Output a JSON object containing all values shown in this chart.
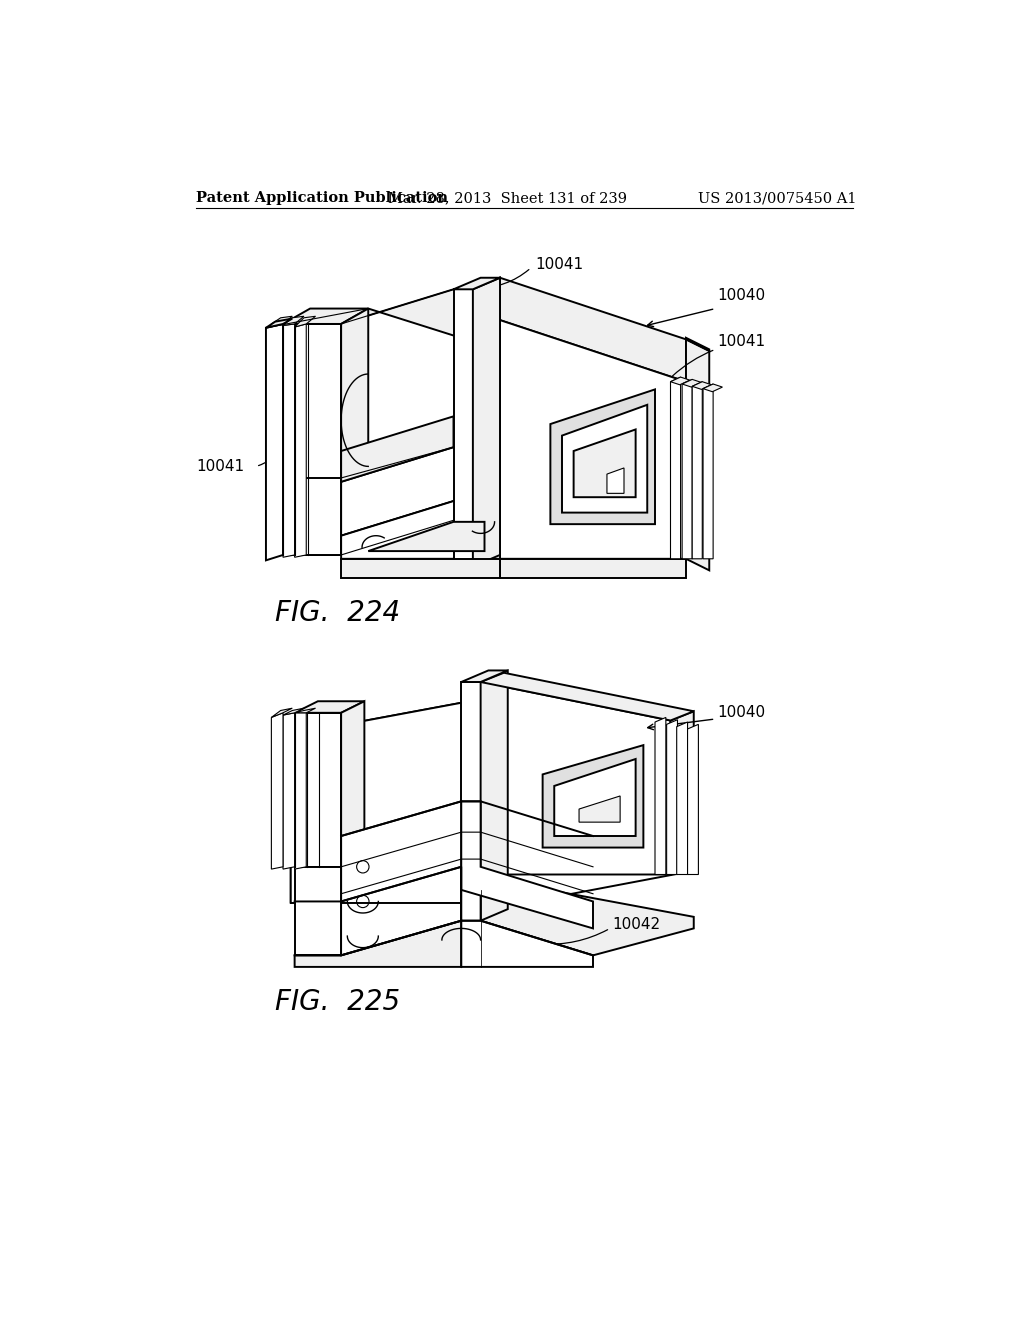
{
  "header_left": "Patent Application Publication",
  "header_mid": "Mar. 28, 2013  Sheet 131 of 239",
  "header_right": "US 2013/0075450 A1",
  "fig224_label": "FIG.  224",
  "fig225_label": "FIG.  225",
  "bg_color": "#ffffff",
  "line_color": "#000000",
  "header_fontsize": 10.5,
  "label_fontsize": 20,
  "ref_fontsize": 11,
  "lw_main": 1.4,
  "lw_thin": 0.8,
  "lw_inner": 1.0
}
